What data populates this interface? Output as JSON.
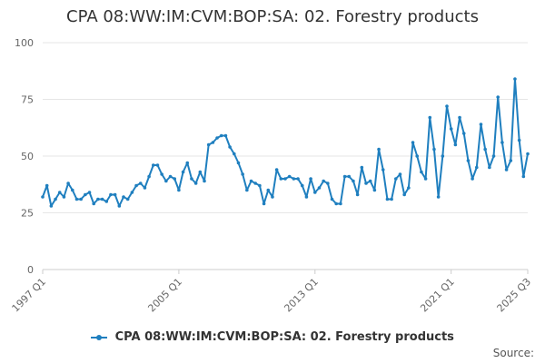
{
  "colors": {
    "series": "#1f7fbf",
    "grid": "#e6e6e6",
    "axis": "#cccccc"
  },
  "source_label": "Source:",
  "chart_data": {
    "type": "line",
    "title": "CPA 08:WW:IM:CVM:BOP:SA: 02. Forestry products",
    "xlabel": "",
    "ylabel": "",
    "ylim": [
      0,
      100
    ],
    "yticks": [
      0,
      25,
      50,
      75,
      100
    ],
    "x_range": [
      "1997 Q1",
      "2025 Q3"
    ],
    "xticks": [
      "1997 Q1",
      "2005 Q1",
      "2013 Q1",
      "2021 Q1",
      "2025 Q3"
    ],
    "grid": true,
    "legend_position": "bottom",
    "series": [
      {
        "name": "CPA 08:WW:IM:CVM:BOP:SA: 02. Forestry products",
        "values": [
          32,
          37,
          28,
          31,
          34,
          32,
          38,
          35,
          31,
          31,
          33,
          34,
          29,
          31,
          31,
          30,
          33,
          33,
          28,
          32,
          31,
          34,
          37,
          38,
          36,
          41,
          46,
          46,
          42,
          39,
          41,
          40,
          35,
          43,
          47,
          40,
          38,
          43,
          39,
          55,
          56,
          58,
          59,
          59,
          54,
          51,
          47,
          42,
          35,
          39,
          38,
          37,
          29,
          35,
          32,
          44,
          40,
          40,
          41,
          40,
          40,
          37,
          32,
          40,
          34,
          36,
          39,
          38,
          31,
          29,
          29,
          41,
          41,
          39,
          33,
          45,
          38,
          39,
          35,
          53,
          44,
          31,
          31,
          40,
          42,
          33,
          36,
          56,
          50,
          43,
          40,
          67,
          53,
          32,
          50,
          72,
          62,
          55,
          67,
          60,
          48,
          40,
          45,
          64,
          53,
          45,
          50,
          76,
          56,
          44,
          48,
          84,
          57,
          41,
          51
        ]
      }
    ]
  }
}
